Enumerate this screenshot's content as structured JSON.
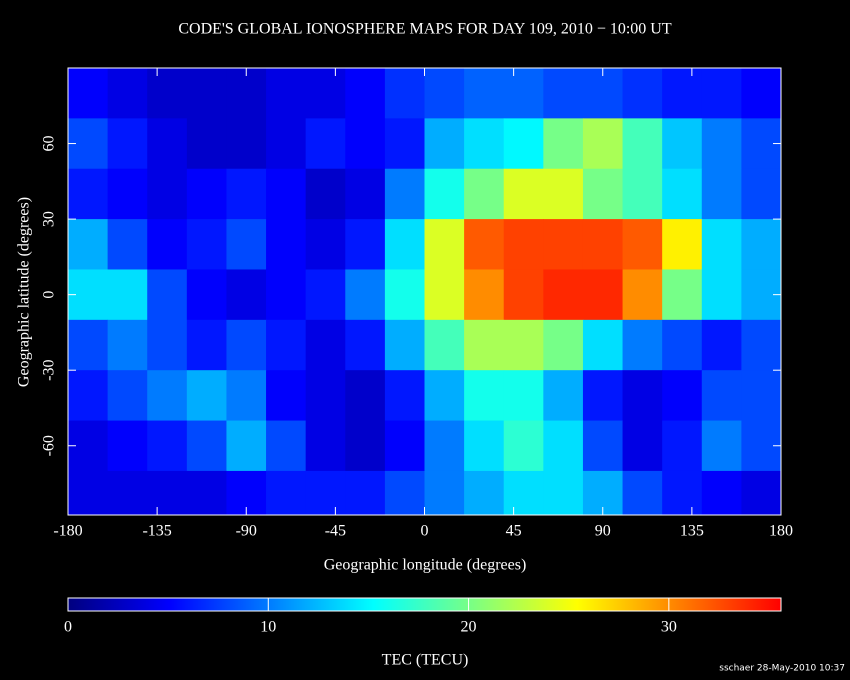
{
  "chart_data": {
    "type": "heatmap",
    "title": "CODE'S GLOBAL IONOSPHERE MAPS FOR DAY 109, 2010 − 10:00 UT",
    "xlabel": "Geographic longitude (degrees)",
    "ylabel": "Geographic latitude (degrees)",
    "colorbar_label": "TEC (TECU)",
    "footnote": "sschaer 28-May-2010 10:37",
    "xlim": [
      -180,
      180
    ],
    "xticks": [
      -180,
      -135,
      -90,
      -45,
      0,
      45,
      90,
      135,
      180
    ],
    "ylim": [
      -87.5,
      90
    ],
    "yticks": [
      -60,
      -30,
      0,
      30,
      60
    ],
    "clim": [
      0,
      35.6
    ],
    "cticks": [
      0,
      10,
      20,
      30
    ],
    "colormap": [
      "#00007f",
      "#0000ff",
      "#007fff",
      "#00ffff",
      "#7fff7f",
      "#ffff00",
      "#ff7f00",
      "#ff0000"
    ],
    "x": [
      -170,
      -150,
      -130,
      -110,
      -90,
      -70,
      -50,
      -30,
      -10,
      10,
      30,
      50,
      70,
      90,
      110,
      130,
      150,
      170
    ],
    "y": [
      80,
      60,
      40,
      20,
      0,
      -20,
      -40,
      -60,
      -80
    ],
    "values": [
      [
        5,
        4,
        3,
        3,
        3,
        4,
        4,
        5,
        7,
        8,
        9,
        9,
        8,
        8,
        7,
        6,
        6,
        5
      ],
      [
        8,
        6,
        4,
        3,
        3,
        4,
        6,
        5,
        6,
        12,
        14,
        15,
        20,
        22,
        18,
        13,
        10,
        8
      ],
      [
        6,
        5,
        4,
        5,
        6,
        5,
        3,
        4,
        10,
        16,
        20,
        24,
        24,
        20,
        18,
        14,
        10,
        8
      ],
      [
        12,
        8,
        5,
        6,
        8,
        5,
        4,
        6,
        14,
        24,
        32,
        33,
        33,
        33,
        32,
        26,
        14,
        12
      ],
      [
        14,
        14,
        8,
        5,
        4,
        5,
        6,
        10,
        16,
        24,
        30,
        33,
        34,
        34,
        30,
        20,
        14,
        12
      ],
      [
        8,
        10,
        8,
        6,
        8,
        6,
        4,
        6,
        12,
        18,
        22,
        22,
        20,
        14,
        10,
        8,
        6,
        8
      ],
      [
        6,
        8,
        10,
        12,
        10,
        5,
        4,
        3,
        6,
        12,
        16,
        16,
        12,
        6,
        4,
        5,
        8,
        8
      ],
      [
        4,
        5,
        6,
        8,
        12,
        8,
        4,
        3,
        5,
        10,
        14,
        17,
        14,
        8,
        4,
        6,
        10,
        8
      ],
      [
        4,
        4,
        4,
        4,
        5,
        6,
        6,
        6,
        8,
        10,
        12,
        14,
        14,
        12,
        8,
        6,
        5,
        4
      ]
    ]
  }
}
